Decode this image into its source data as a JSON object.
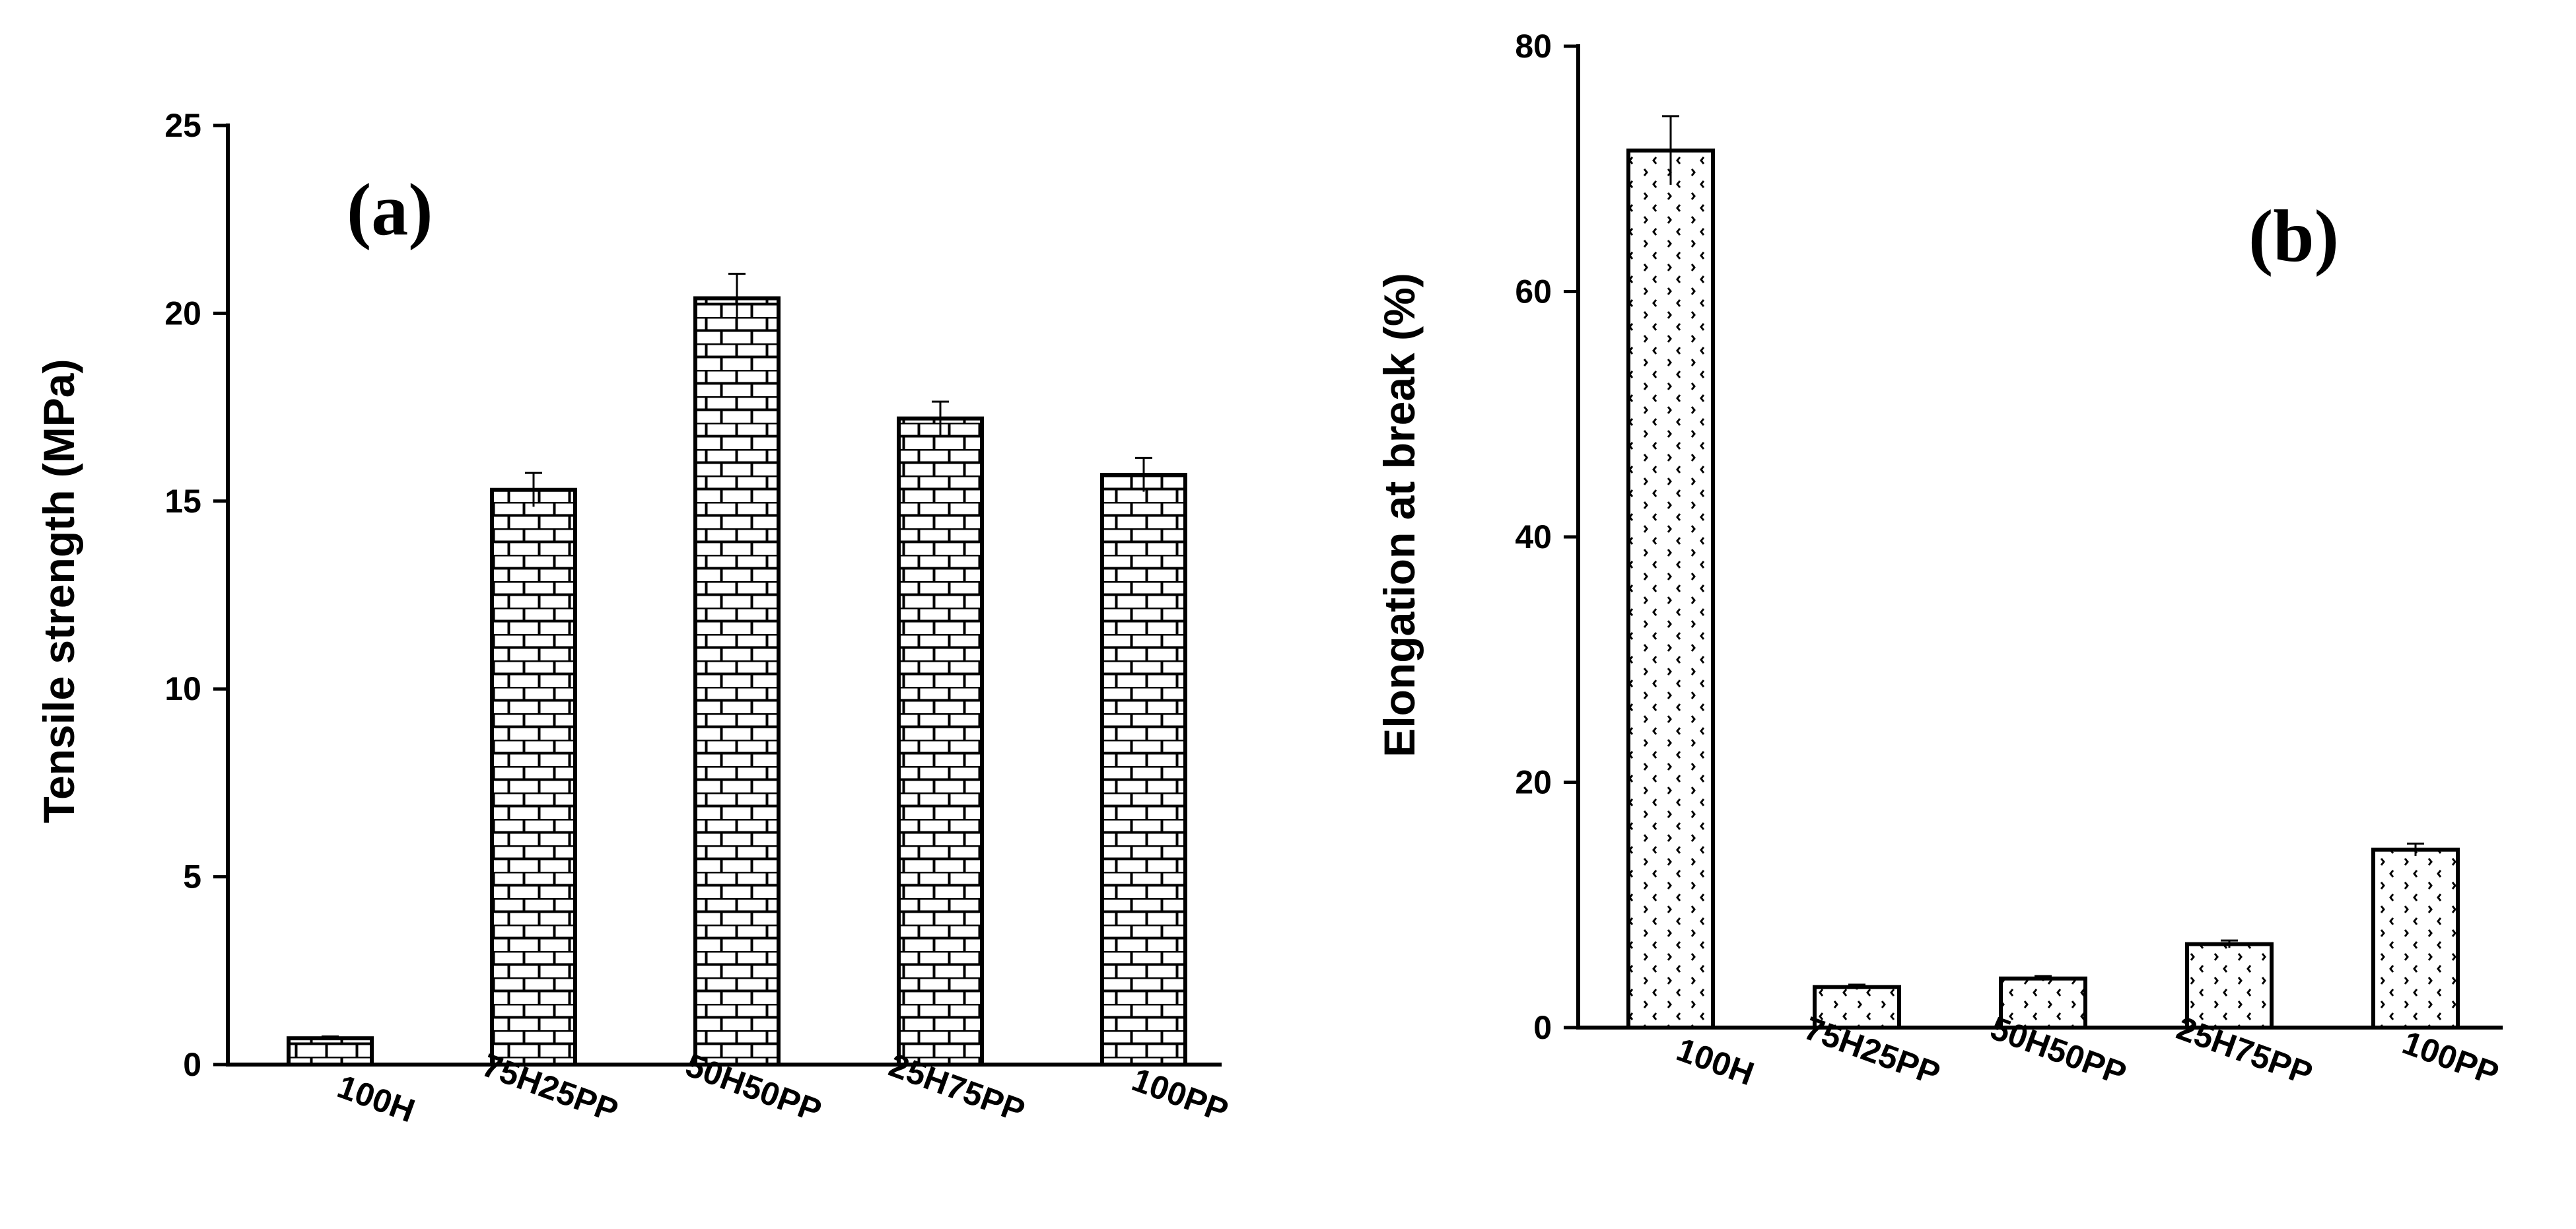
{
  "chart_data": [
    {
      "type": "bar",
      "panel_label": "(a)",
      "ylabel": "Tensile strength (MPa)",
      "categories": [
        "100H",
        "75H25PP",
        "50H50PP",
        "25H75PP",
        "100PP"
      ],
      "values": [
        0.7,
        15.3,
        20.4,
        17.2,
        15.7
      ],
      "errors": [
        0.05,
        0.45,
        0.65,
        0.45,
        0.45
      ],
      "ylim": [
        0,
        25
      ],
      "yticks": [
        0,
        5,
        10,
        15,
        20,
        25
      ],
      "fill_pattern": "brick",
      "grid": false,
      "legend": "none"
    },
    {
      "type": "bar",
      "panel_label": "(b)",
      "ylabel": "Elongation at break (%)",
      "categories": [
        "100H",
        "75H25PP",
        "50H50PP",
        "25H75PP",
        "100PP"
      ],
      "values": [
        71.5,
        3.3,
        4.0,
        6.8,
        14.5
      ],
      "errors": [
        2.8,
        0.2,
        0.2,
        0.3,
        0.5
      ],
      "ylim": [
        0,
        80
      ],
      "yticks": [
        0,
        20,
        40,
        60,
        80
      ],
      "fill_pattern": "dots",
      "grid": false,
      "legend": "none"
    }
  ]
}
